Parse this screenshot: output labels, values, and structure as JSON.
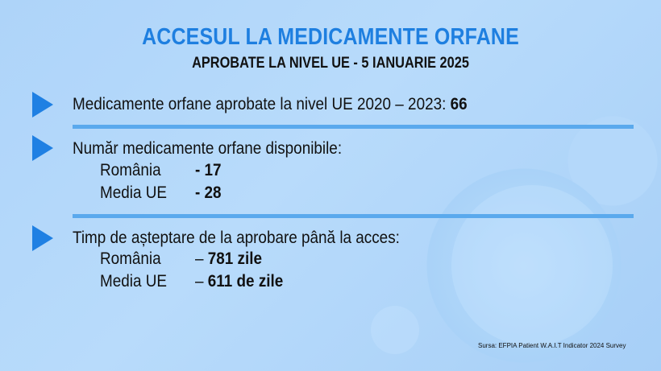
{
  "header": {
    "title": "ACCESUL LA MEDICAMENTE ORFANE",
    "subtitle": "APROBATE LA NIVEL UE - 5 IANUARIE 2025"
  },
  "items": [
    {
      "icon": "triangle-bullet-icon",
      "label": "Medicamente orfane aprobate la nivel UE 2020 – 2023: ",
      "value": "66"
    },
    {
      "icon": "triangle-bullet-icon",
      "label": "Număr medicamente orfane disponibile:",
      "rows": [
        {
          "name": "România",
          "value": "- 17"
        },
        {
          "name": "Media UE",
          "value": "- 28"
        }
      ]
    },
    {
      "icon": "triangle-bullet-icon",
      "label": "Timp de așteptare de la aprobare până la acces:",
      "rows": [
        {
          "name": "România",
          "dash": "– ",
          "value": "781 zile"
        },
        {
          "name": "Media UE",
          "dash": "– ",
          "value": "611 de zile"
        }
      ]
    }
  ],
  "source": "Sursa: EFPIA Patient W.A.I.T  Indicator 2024 Survey",
  "colors": {
    "accent": "#1e7fe0",
    "divider": "#5aa9ed"
  }
}
